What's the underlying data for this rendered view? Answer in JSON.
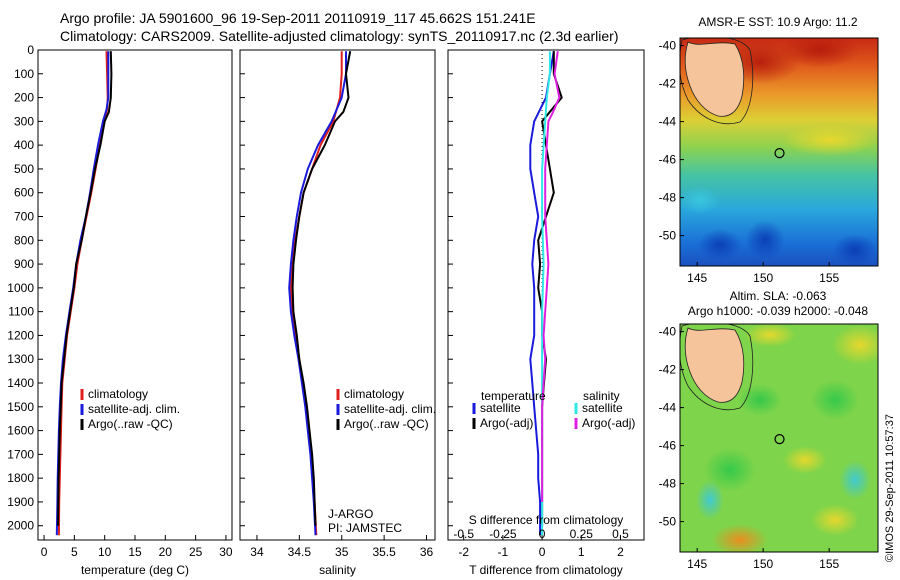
{
  "header": {
    "title_line1": "Argo profile: JA 5901600_96 19-Sep-2011 20110919_117 45.662S 151.241E",
    "title_line2": "Climatology: CARS2009. Satellite-adjusted climatology: synTS_20110917.nc (2.3d earlier)"
  },
  "colors": {
    "climatology": "#e0201c",
    "satellite": "#1a1adc",
    "argo": "#000000",
    "satellite_sal": "#2ee8e8",
    "argo_sal_adj": "#e020e0",
    "land": "#f5c49a"
  },
  "chart_data": [
    {
      "type": "line",
      "id": "temperature",
      "xlabel": "temperature (deg C)",
      "xlim": [
        -1,
        31
      ],
      "ylim": [
        0,
        2060
      ],
      "xticks": [
        0,
        5,
        10,
        15,
        20,
        25,
        30
      ],
      "yticks": [
        0,
        100,
        200,
        300,
        400,
        500,
        600,
        700,
        800,
        900,
        1000,
        1100,
        1200,
        1300,
        1400,
        1500,
        1600,
        1700,
        1800,
        1900,
        2000
      ],
      "legend": [
        "climatology",
        "satellite-adj. clim.",
        "Argo(..raw -QC)"
      ],
      "series": [
        {
          "name": "climatology",
          "color_key": "climatology",
          "points": [
            [
              10.3,
              5
            ],
            [
              10.4,
              100
            ],
            [
              10.5,
              200
            ],
            [
              10.4,
              250
            ],
            [
              9.9,
              300
            ],
            [
              9.2,
              400
            ],
            [
              8.5,
              500
            ],
            [
              7.8,
              600
            ],
            [
              7.0,
              700
            ],
            [
              6.2,
              800
            ],
            [
              5.5,
              900
            ],
            [
              5.0,
              1000
            ],
            [
              4.4,
              1100
            ],
            [
              3.8,
              1200
            ],
            [
              3.4,
              1300
            ],
            [
              3.0,
              1400
            ],
            [
              2.9,
              1500
            ],
            [
              2.8,
              1600
            ],
            [
              2.7,
              1700
            ],
            [
              2.6,
              1800
            ],
            [
              2.5,
              1900
            ],
            [
              2.45,
              2040
            ]
          ]
        },
        {
          "name": "satellite-adj. clim.",
          "color_key": "satellite",
          "points": [
            [
              10.6,
              5
            ],
            [
              10.6,
              100
            ],
            [
              10.6,
              200
            ],
            [
              10.3,
              250
            ],
            [
              9.7,
              300
            ],
            [
              8.9,
              400
            ],
            [
              8.2,
              500
            ],
            [
              7.6,
              600
            ],
            [
              6.9,
              700
            ],
            [
              6.0,
              800
            ],
            [
              5.3,
              900
            ],
            [
              4.8,
              1000
            ],
            [
              4.2,
              1100
            ],
            [
              3.6,
              1200
            ],
            [
              3.1,
              1300
            ],
            [
              2.8,
              1400
            ],
            [
              2.6,
              1500
            ],
            [
              2.45,
              1600
            ],
            [
              2.35,
              1700
            ],
            [
              2.25,
              1800
            ],
            [
              2.2,
              1900
            ],
            [
              2.1,
              2040
            ]
          ]
        },
        {
          "name": "Argo(..raw -QC)",
          "color_key": "argo",
          "points": [
            [
              11.0,
              5
            ],
            [
              11.1,
              100
            ],
            [
              11.0,
              200
            ],
            [
              10.7,
              260
            ],
            [
              10.0,
              300
            ],
            [
              9.3,
              400
            ],
            [
              8.4,
              500
            ],
            [
              7.7,
              600
            ],
            [
              6.9,
              700
            ],
            [
              6.2,
              800
            ],
            [
              5.3,
              900
            ],
            [
              4.9,
              1000
            ],
            [
              4.3,
              1100
            ],
            [
              3.7,
              1200
            ],
            [
              3.3,
              1300
            ],
            [
              2.9,
              1400
            ],
            [
              2.75,
              1500
            ],
            [
              2.6,
              1600
            ],
            [
              2.5,
              1700
            ],
            [
              2.4,
              1800
            ],
            [
              2.35,
              1900
            ],
            [
              2.3,
              2000
            ]
          ]
        }
      ]
    },
    {
      "type": "line",
      "id": "salinity",
      "xlabel": "salinity",
      "xlim": [
        33.8,
        36.1
      ],
      "ylim": [
        0,
        2060
      ],
      "xticks": [
        34,
        34.5,
        35,
        35.5,
        36
      ],
      "legend": [
        "climatology",
        "satellite-adj. clim.",
        "Argo(..raw -QC)"
      ],
      "annotations": [
        "J-ARGO",
        "PI: JAMSTEC"
      ],
      "series": [
        {
          "name": "climatology",
          "color_key": "climatology",
          "points": [
            [
              35.0,
              5
            ],
            [
              35.0,
              100
            ],
            [
              34.98,
              200
            ],
            [
              34.9,
              300
            ],
            [
              34.75,
              400
            ],
            [
              34.65,
              500
            ],
            [
              34.55,
              600
            ],
            [
              34.5,
              700
            ],
            [
              34.45,
              800
            ],
            [
              34.42,
              900
            ],
            [
              34.4,
              1000
            ],
            [
              34.42,
              1100
            ],
            [
              34.45,
              1200
            ],
            [
              34.5,
              1300
            ],
            [
              34.54,
              1400
            ],
            [
              34.58,
              1500
            ],
            [
              34.61,
              1600
            ],
            [
              34.64,
              1700
            ],
            [
              34.66,
              1800
            ],
            [
              34.68,
              1900
            ],
            [
              34.7,
              2040
            ]
          ]
        },
        {
          "name": "satellite-adj. clim.",
          "color_key": "satellite",
          "points": [
            [
              35.05,
              5
            ],
            [
              35.05,
              100
            ],
            [
              35.0,
              200
            ],
            [
              34.88,
              300
            ],
            [
              34.72,
              400
            ],
            [
              34.6,
              500
            ],
            [
              34.52,
              600
            ],
            [
              34.47,
              700
            ],
            [
              34.43,
              800
            ],
            [
              34.4,
              900
            ],
            [
              34.38,
              1000
            ],
            [
              34.4,
              1100
            ],
            [
              34.44,
              1200
            ],
            [
              34.49,
              1300
            ],
            [
              34.53,
              1400
            ],
            [
              34.57,
              1500
            ],
            [
              34.6,
              1600
            ],
            [
              34.63,
              1700
            ],
            [
              34.65,
              1800
            ],
            [
              34.67,
              1900
            ],
            [
              34.69,
              2040
            ]
          ]
        },
        {
          "name": "Argo(..raw -QC)",
          "color_key": "argo",
          "points": [
            [
              35.1,
              5
            ],
            [
              35.05,
              100
            ],
            [
              35.08,
              200
            ],
            [
              35.02,
              260
            ],
            [
              34.92,
              300
            ],
            [
              34.8,
              400
            ],
            [
              34.65,
              500
            ],
            [
              34.55,
              600
            ],
            [
              34.5,
              700
            ],
            [
              34.46,
              800
            ],
            [
              34.43,
              900
            ],
            [
              34.42,
              1000
            ],
            [
              34.43,
              1100
            ],
            [
              34.47,
              1200
            ],
            [
              34.5,
              1300
            ],
            [
              34.55,
              1400
            ],
            [
              34.59,
              1500
            ],
            [
              34.62,
              1600
            ],
            [
              34.65,
              1700
            ],
            [
              34.67,
              1800
            ],
            [
              34.68,
              1900
            ],
            [
              34.69,
              2000
            ]
          ]
        }
      ]
    },
    {
      "type": "line",
      "id": "difference",
      "xlabel": "T difference from climatology",
      "xlabel2": "S difference from climatology",
      "xlim": [
        -2.4,
        2.6
      ],
      "ylim": [
        0,
        2060
      ],
      "xticks": [
        -2,
        -1,
        0,
        1,
        2
      ],
      "xticks2": [
        "-0.5",
        "-0.25",
        "0",
        "0.25",
        "0.5"
      ],
      "legend_left": [
        "temperature",
        "satellite",
        "Argo(-adj)"
      ],
      "legend_right": [
        "salinity",
        "satellite",
        "Argo(-adj)"
      ],
      "series": [
        {
          "name": "temperature satellite",
          "color_key": "satellite",
          "points": [
            [
              0.3,
              5
            ],
            [
              0.2,
              100
            ],
            [
              0.1,
              200
            ],
            [
              -0.2,
              300
            ],
            [
              -0.3,
              400
            ],
            [
              -0.3,
              500
            ],
            [
              -0.2,
              600
            ],
            [
              -0.1,
              700
            ],
            [
              -0.2,
              800
            ],
            [
              -0.25,
              900
            ],
            [
              -0.2,
              1000
            ],
            [
              -0.2,
              1100
            ],
            [
              -0.2,
              1200
            ],
            [
              -0.3,
              1300
            ],
            [
              -0.25,
              1400
            ],
            [
              -0.2,
              1500
            ],
            [
              -0.15,
              1600
            ],
            [
              -0.1,
              1700
            ],
            [
              -0.1,
              1800
            ],
            [
              -0.05,
              1900
            ],
            [
              -0.05,
              2040
            ]
          ]
        },
        {
          "name": "temperature Argo(-adj)",
          "color_key": "argo",
          "points": [
            [
              0.3,
              5
            ],
            [
              0.3,
              100
            ],
            [
              0.5,
              200
            ],
            [
              0.2,
              260
            ],
            [
              0.0,
              300
            ],
            [
              0.1,
              400
            ],
            [
              0.2,
              500
            ],
            [
              0.3,
              600
            ],
            [
              0.1,
              700
            ],
            [
              -0.1,
              800
            ],
            [
              -0.05,
              900
            ],
            [
              -0.1,
              1000
            ],
            [
              0.0,
              1100
            ],
            [
              0.0,
              1200
            ],
            [
              0.1,
              1300
            ],
            [
              0.05,
              1400
            ],
            [
              0.0,
              1500
            ],
            [
              0.0,
              1600
            ],
            [
              0.0,
              1700
            ],
            [
              0.0,
              1800
            ],
            [
              0.0,
              1900
            ],
            [
              0.0,
              2000
            ]
          ]
        },
        {
          "name": "salinity satellite",
          "color_key": "satellite_sal",
          "points": [
            [
              0.05,
              5
            ],
            [
              0.05,
              100
            ],
            [
              0.03,
              200
            ],
            [
              0.02,
              300
            ],
            [
              0.0,
              500
            ],
            [
              0.0,
              700
            ],
            [
              0.01,
              900
            ],
            [
              0.0,
              1100
            ],
            [
              0.0,
              1300
            ],
            [
              0.0,
              1500
            ],
            [
              0.0,
              1700
            ],
            [
              0.0,
              1900
            ],
            [
              0.0,
              2040
            ]
          ]
        },
        {
          "name": "salinity Argo(-adj)",
          "color_key": "argo_sal_adj",
          "points": [
            [
              0.1,
              5
            ],
            [
              0.08,
              100
            ],
            [
              0.11,
              200
            ],
            [
              0.07,
              260
            ],
            [
              0.04,
              300
            ],
            [
              0.03,
              400
            ],
            [
              0.02,
              500
            ],
            [
              0.02,
              600
            ],
            [
              0.02,
              700
            ],
            [
              0.03,
              800
            ],
            [
              0.04,
              900
            ],
            [
              0.03,
              1000
            ],
            [
              0.02,
              1100
            ],
            [
              0.01,
              1200
            ],
            [
              0.02,
              1300
            ],
            [
              0.01,
              1400
            ],
            [
              0.0,
              1500
            ],
            [
              0.0,
              1600
            ],
            [
              0.0,
              1700
            ],
            [
              0.0,
              1800
            ],
            [
              0.0,
              1900
            ]
          ]
        }
      ]
    },
    {
      "type": "heatmap",
      "id": "sst_map",
      "title": "AMSR-E SST: 10.9 Argo: 11.2",
      "xlim": [
        143.7,
        158.7
      ],
      "ylim": [
        -51.6,
        -39.6
      ],
      "xticks": [
        145,
        150,
        155
      ],
      "yticks": [
        -40,
        -42,
        -44,
        -46,
        -48,
        -50
      ],
      "argo_position": [
        151.24,
        -45.66
      ]
    },
    {
      "type": "heatmap",
      "id": "sla_map",
      "title": "Altim. SLA: -0.063",
      "subtitle": "Argo h1000: -0.039 h2000: -0.048",
      "xlim": [
        143.7,
        158.7
      ],
      "ylim": [
        -51.6,
        -39.6
      ],
      "xticks": [
        145,
        150,
        155
      ],
      "yticks": [
        -40,
        -42,
        -44,
        -46,
        -48,
        -50
      ],
      "argo_position": [
        151.24,
        -45.66
      ]
    }
  ],
  "footer": {
    "credit": "©IMOS 29-Sep-2011 10:57:37"
  }
}
